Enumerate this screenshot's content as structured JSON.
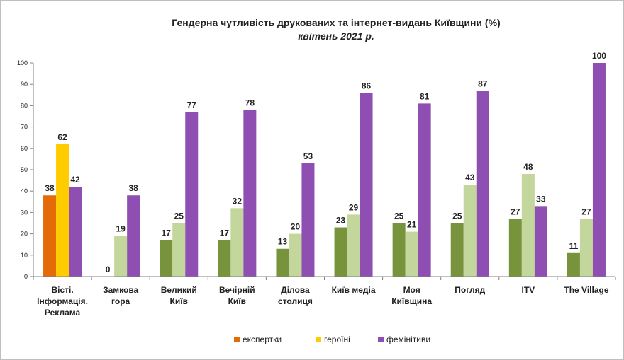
{
  "chart_data": {
    "type": "bar",
    "title": "Гендерна чутливість друкованих та інтернет-видань Київщини (%)",
    "subtitle": "квітень 2021 р.",
    "categories": [
      [
        "Вісті.",
        "Інформація.",
        "Реклама"
      ],
      [
        "Замкова",
        "гора"
      ],
      [
        "Великий",
        "Київ"
      ],
      [
        "Вечірній",
        "Київ"
      ],
      [
        "Ділова",
        "столиця"
      ],
      [
        "Київ медіа"
      ],
      [
        "Моя",
        "Київщина"
      ],
      [
        "Погляд"
      ],
      [
        "ITV"
      ],
      [
        "The Village"
      ]
    ],
    "series": [
      {
        "name": "експертки",
        "values": [
          38,
          0,
          17,
          17,
          13,
          23,
          25,
          25,
          27,
          11
        ]
      },
      {
        "name": "героїні",
        "values": [
          62,
          19,
          25,
          32,
          20,
          29,
          21,
          43,
          48,
          27
        ]
      },
      {
        "name": "фемінітиви",
        "values": [
          42,
          38,
          77,
          78,
          53,
          86,
          81,
          87,
          33,
          100
        ]
      }
    ],
    "first_category_colors": [
      "#E36C09",
      "#FFCC00",
      "#8E4EB2"
    ],
    "other_category_colors": [
      "#77933C",
      "#C3D69B",
      "#8E4EB2"
    ],
    "ylim": [
      0,
      100
    ],
    "yticks": [
      0,
      10,
      20,
      30,
      40,
      50,
      60,
      70,
      80,
      90,
      100
    ],
    "grid": false,
    "legend": "bottom",
    "legend_colors": [
      "#E36C09",
      "#FFCC00",
      "#8E4EB2"
    ]
  }
}
